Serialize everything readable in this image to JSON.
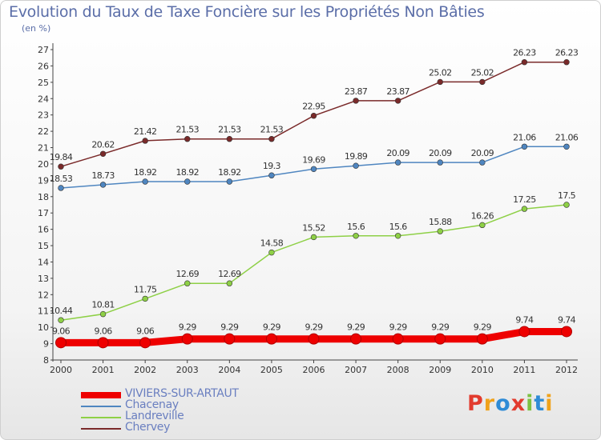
{
  "title": "Evolution du Taux de Taxe Foncière sur les Propriétés Non Bâties",
  "unit_label": "(en %)",
  "logo": {
    "text": "Proxiti",
    "colors": [
      "#e23b2e",
      "#f0a21b",
      "#2e8bd6",
      "#e23b2e",
      "#7cc142",
      "#2e8bd6",
      "#f0a21b"
    ]
  },
  "chart_data": {
    "type": "line",
    "title": "Evolution du Taux de Taxe Foncière sur les Propriétés Non Bâties",
    "ylabel": "(en %)",
    "xlabel": "",
    "categories": [
      "2000",
      "2001",
      "2002",
      "2003",
      "2004",
      "2005",
      "2006",
      "2007",
      "2008",
      "2009",
      "2010",
      "2011",
      "2012"
    ],
    "ylim": [
      8,
      27
    ],
    "yticks": [
      "8",
      "9",
      "10",
      "11",
      "12",
      "13",
      "14",
      "15",
      "16",
      "17",
      "18",
      "19",
      "20",
      "21",
      "22",
      "23",
      "24",
      "25",
      "26",
      "27"
    ],
    "grid": false,
    "legend_position": "bottom-left",
    "series": [
      {
        "name": "VIVIERS-SUR-ARTAUT",
        "color": "#ee0000",
        "emphasis": true,
        "values": [
          9.06,
          9.06,
          9.06,
          9.29,
          9.29,
          9.29,
          9.29,
          9.29,
          9.29,
          9.29,
          9.29,
          9.74,
          9.74
        ],
        "labels": [
          "9.06",
          "9.06",
          "9.06",
          "9.29",
          "9.29",
          "9.29",
          "9.29",
          "9.29",
          "9.29",
          "9.29",
          "9.29",
          "9.74",
          "9.74"
        ]
      },
      {
        "name": "Chacenay",
        "color": "#4f86c0",
        "values": [
          18.53,
          18.73,
          18.92,
          18.92,
          18.92,
          19.3,
          19.69,
          19.89,
          20.09,
          20.09,
          20.09,
          21.06,
          21.06
        ],
        "labels": [
          "18.53",
          "18.73",
          "18.92",
          "18.92",
          "18.92",
          "19.3",
          "19.69",
          "19.89",
          "20.09",
          "20.09",
          "20.09",
          "21.06",
          "21.06"
        ]
      },
      {
        "name": "Landreville",
        "color": "#8ed046",
        "values": [
          10.44,
          10.81,
          11.75,
          12.69,
          12.69,
          14.58,
          15.52,
          15.6,
          15.6,
          15.88,
          16.26,
          17.25,
          17.5
        ],
        "labels": [
          "10.44",
          "10.81",
          "11.75",
          "12.69",
          "12.69",
          "14.58",
          "15.52",
          "15.6",
          "15.6",
          "15.88",
          "16.26",
          "17.25",
          "17.5"
        ]
      },
      {
        "name": "Chervey",
        "color": "#7a2a2a",
        "values": [
          19.84,
          20.62,
          21.42,
          21.53,
          21.53,
          21.53,
          22.95,
          23.87,
          23.87,
          25.02,
          25.02,
          26.23,
          26.23
        ],
        "labels": [
          "19.84",
          "20.62",
          "21.42",
          "21.53",
          "21.53",
          "21.53",
          "22.95",
          "23.87",
          "23.87",
          "25.02",
          "25.02",
          "26.23",
          "26.23"
        ]
      }
    ]
  }
}
